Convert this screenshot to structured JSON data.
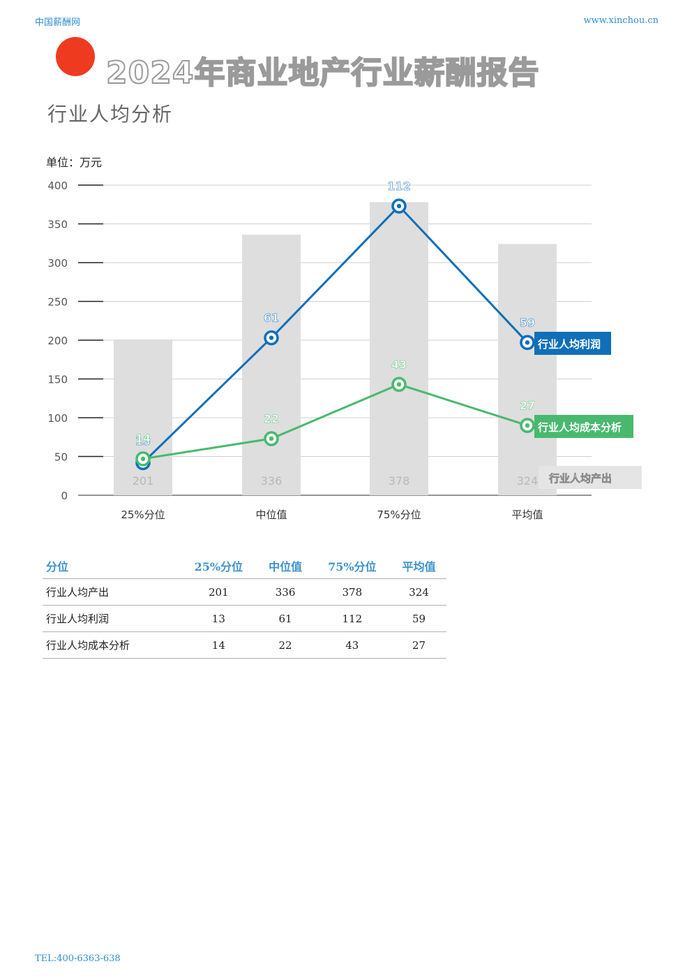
{
  "header": {
    "site_name": "中国薪酬网",
    "site_url": "www.xinchou.cn"
  },
  "report": {
    "title": "2024年商业地产行业薪酬报告",
    "subtitle": "行业人均分析",
    "unit": "单位：万元"
  },
  "footer": {
    "tel": "TEL:400-6363-638"
  },
  "colors": {
    "bar": "#dedede",
    "profit": "#0f6fb8",
    "cost": "#48b96e",
    "accent_dot": "#ee3b1f"
  },
  "chart_data": {
    "type": "bar+line",
    "categories": [
      "25%分位",
      "中位值",
      "75%分位",
      "平均值"
    ],
    "ylim": [
      0,
      400
    ],
    "yticks": [
      0,
      50,
      100,
      150,
      200,
      250,
      300,
      350,
      400
    ],
    "grid": true,
    "series": [
      {
        "name": "行业人均产出",
        "type": "bar",
        "values": [
          201,
          336,
          378,
          324
        ]
      },
      {
        "name": "行业人均利润",
        "type": "line",
        "values": [
          13,
          61,
          112,
          59
        ],
        "plotted": [
          42,
          203,
          373,
          197
        ]
      },
      {
        "name": "行业人均成本分析",
        "type": "line",
        "values": [
          14,
          22,
          43,
          27
        ],
        "plotted": [
          47,
          73,
          143,
          90
        ]
      }
    ]
  },
  "table": {
    "headers": [
      "分位",
      "25%分位",
      "中位值",
      "75%分位",
      "平均值"
    ],
    "rows": [
      [
        "行业人均产出",
        "201",
        "336",
        "378",
        "324"
      ],
      [
        "行业人均利润",
        "13",
        "61",
        "112",
        "59"
      ],
      [
        "行业人均成本分析",
        "14",
        "22",
        "43",
        "27"
      ]
    ]
  }
}
